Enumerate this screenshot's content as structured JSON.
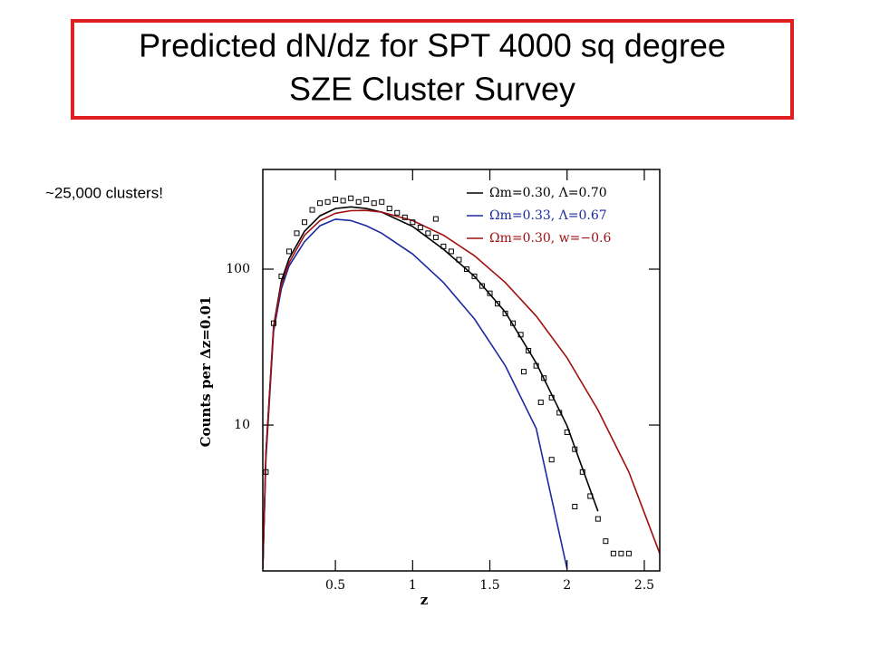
{
  "chart_data": {
    "type": "line",
    "title": [
      "Predicted dN/dz for SPT 4000 sq degree",
      "SZE Cluster Survey"
    ],
    "annotation": "~25,000 clusters!",
    "xlabel": "z",
    "ylabel": "Counts per Δz=0.01",
    "ylog": true,
    "xlim": [
      0.03,
      2.6
    ],
    "ylim": [
      1.16,
      436
    ],
    "xticks": [
      0.5,
      1,
      1.5,
      2,
      2.5
    ],
    "yticks": [
      10,
      100
    ],
    "legend": "upper right",
    "x": [
      0.03,
      0.05,
      0.1,
      0.15,
      0.2,
      0.3,
      0.4,
      0.5,
      0.6,
      0.7,
      0.8,
      1.0,
      1.2,
      1.4,
      1.6,
      1.8,
      2.0,
      2.2,
      2.4,
      2.6
    ],
    "series": [
      {
        "name": "Ωm=0.30, Λ=0.70",
        "color": "#000000",
        "values": [
          1.2,
          6.6,
          43,
          84,
          117,
          175,
          220,
          245,
          251,
          245,
          232,
          188,
          134,
          90,
          53,
          25,
          9.9,
          2.8,
          null,
          null
        ]
      },
      {
        "name": "Ωm=0.33, Λ=0.67",
        "color": "#1a2aa0",
        "values": [
          1.2,
          6,
          40,
          75,
          105,
          150,
          190,
          209,
          205,
          190,
          170,
          125,
          82,
          48,
          24,
          9.5,
          1.2,
          null,
          null,
          null
        ]
      },
      {
        "name": "Ωm=0.30, w=−0.6",
        "color": "#a01010",
        "values": [
          1.2,
          6.5,
          42,
          80,
          110,
          165,
          205,
          228,
          237,
          238,
          232,
          205,
          165,
          122,
          82,
          50,
          27,
          12.5,
          5,
          1.5
        ]
      }
    ],
    "points": {
      "color": "#000000",
      "x": [
        0.05,
        0.1,
        0.15,
        0.2,
        0.25,
        0.3,
        0.35,
        0.4,
        0.45,
        0.5,
        0.55,
        0.6,
        0.65,
        0.7,
        0.75,
        0.8,
        0.85,
        0.9,
        0.95,
        1.0,
        1.05,
        1.1,
        1.15,
        1.2,
        1.25,
        1.3,
        1.35,
        1.4,
        1.45,
        1.5,
        1.55,
        1.6,
        1.65,
        1.7,
        1.75,
        1.8,
        1.85,
        1.9,
        1.95,
        2.0,
        2.05,
        2.1,
        2.15,
        2.2,
        2.25,
        2.3,
        2.35,
        2.4,
        1.15,
        1.72,
        1.9,
        2.05,
        1.83
      ],
      "values": [
        5,
        45,
        90,
        130,
        170,
        200,
        240,
        265,
        270,
        280,
        275,
        285,
        270,
        280,
        265,
        270,
        245,
        230,
        215,
        200,
        185,
        170,
        160,
        140,
        130,
        115,
        100,
        90,
        78,
        70,
        60,
        52,
        45,
        38,
        30,
        24,
        20,
        15,
        12,
        9,
        7,
        5,
        3.5,
        2.5,
        1.8,
        1.5,
        1.5,
        1.5,
        210,
        22,
        6,
        3,
        14
      ]
    }
  }
}
